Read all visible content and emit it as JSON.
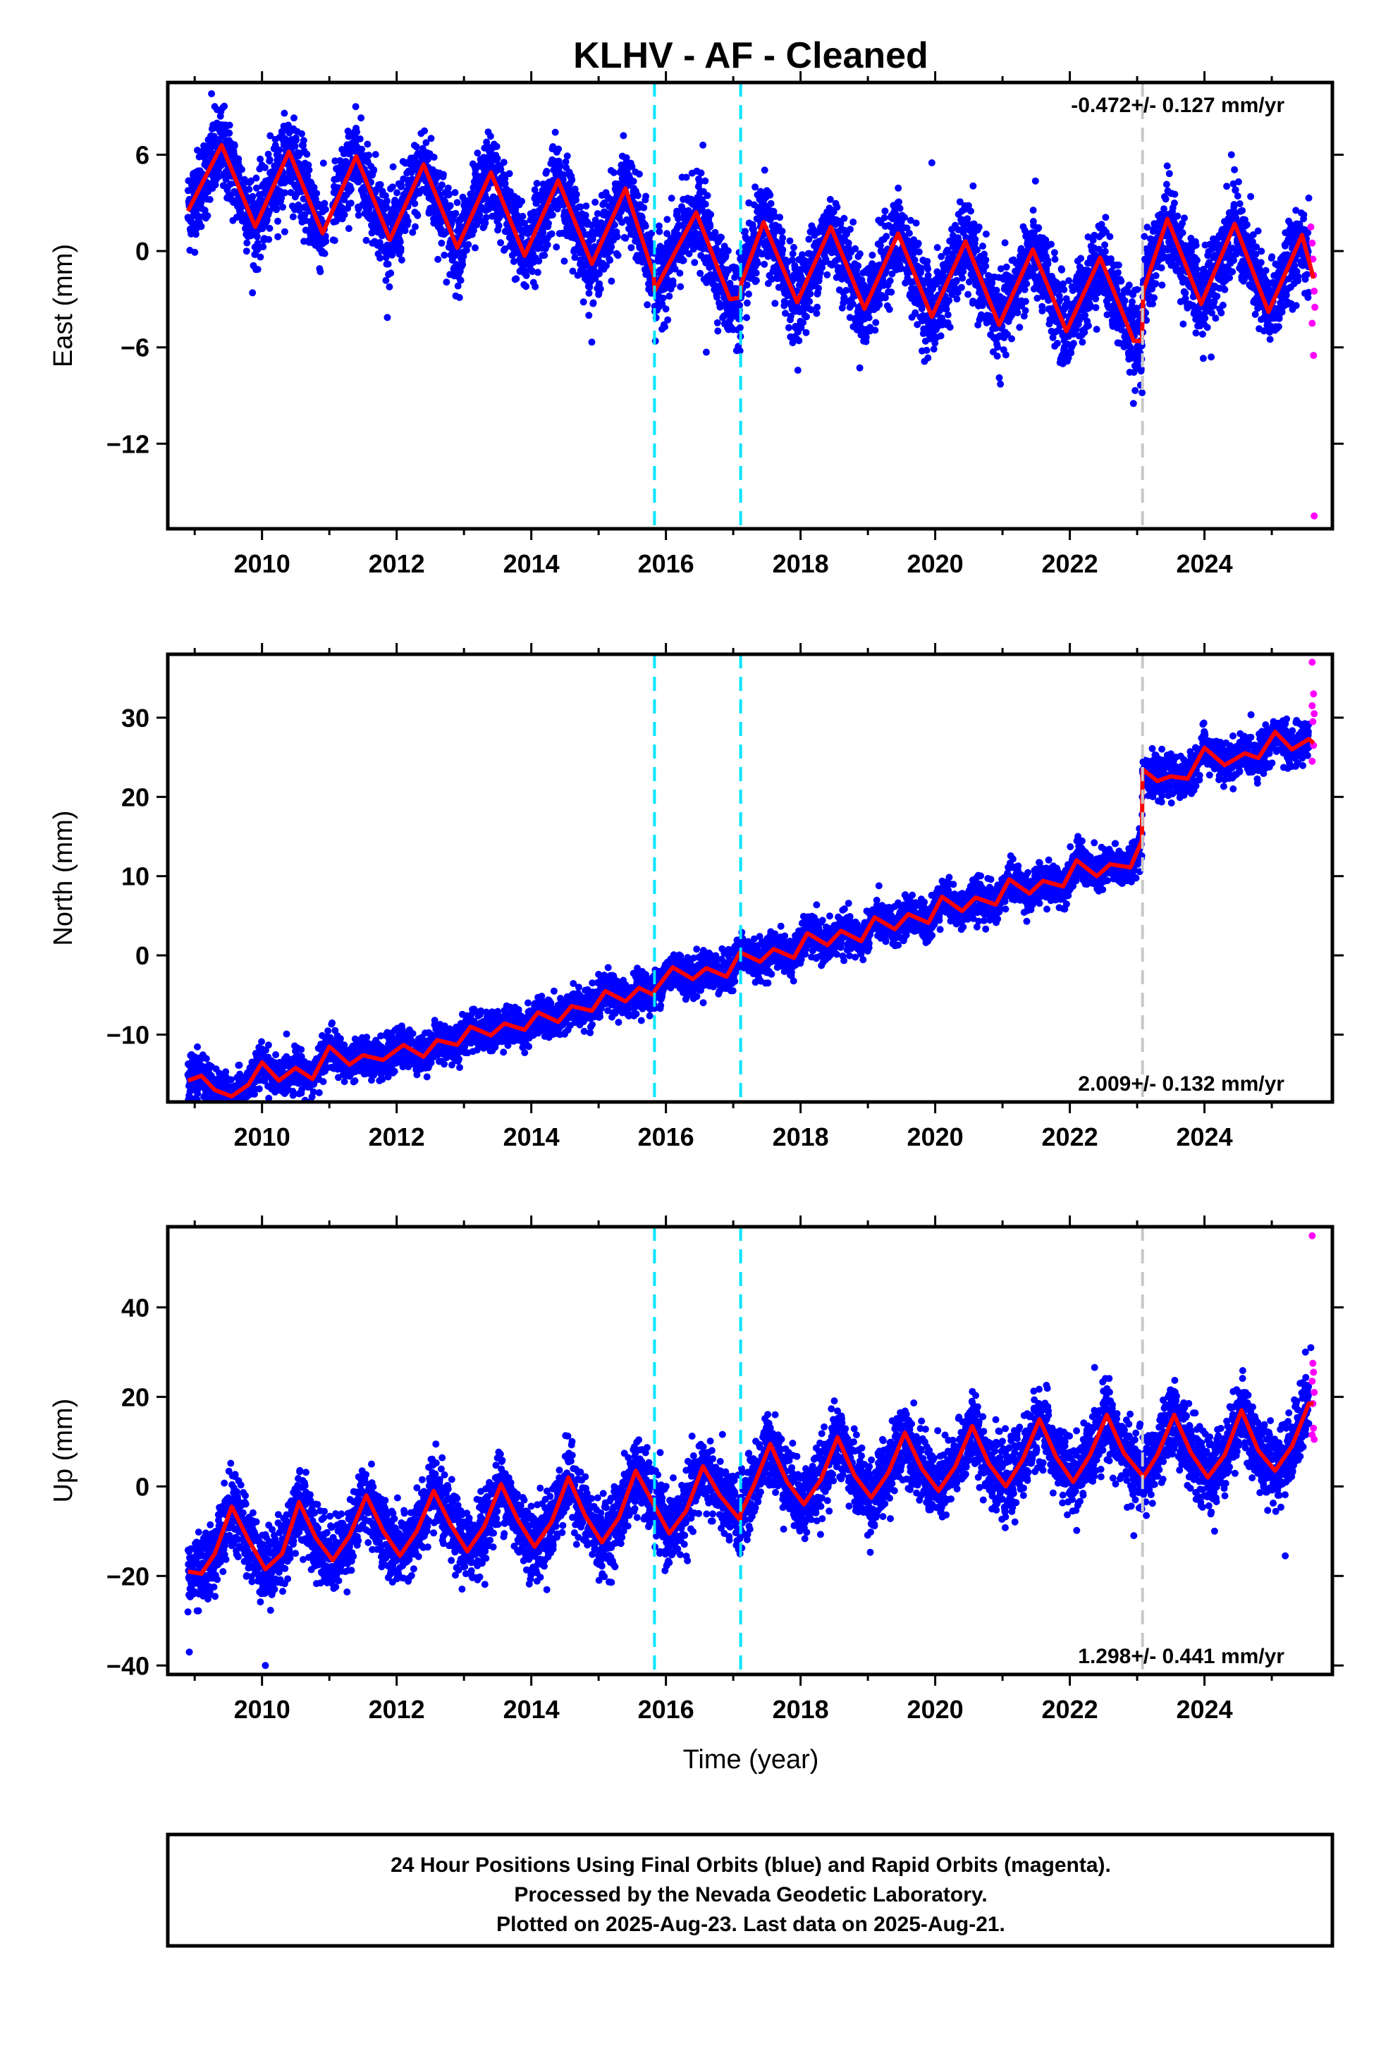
{
  "title": "KLHV  - AF - Cleaned",
  "colors": {
    "final_orbits": "#0000ff",
    "rapid_orbits": "#ff00ff",
    "model_fit": "#ff0000",
    "equipment_change": "#00e5ff",
    "earthquake": "#c8c8c8"
  },
  "xlabel": "Time (year)",
  "footer": {
    "line1": "24 Hour Positions Using Final Orbits (blue) and Rapid Orbits (magenta).",
    "line2": "Processed by the Nevada Geodetic Laboratory.",
    "line3": "Plotted on 2025-Aug-23. Last data on 2025-Aug-21."
  },
  "chart_data": [
    {
      "type": "scatter",
      "component": "East",
      "ylabel": "East (mm)",
      "xlim": [
        2008.6,
        2025.9
      ],
      "ylim": [
        -17.3,
        10.5
      ],
      "x_ticks": [
        2010,
        2012,
        2014,
        2016,
        2018,
        2020,
        2022,
        2024
      ],
      "x_tick_labels": [
        "2010",
        "2012",
        "2014",
        "2016",
        "2018",
        "2020",
        "2022",
        "2024"
      ],
      "y_ticks": [
        6,
        0,
        -6,
        -12
      ],
      "y_tick_labels": [
        "6",
        "0",
        "−6",
        "−12"
      ],
      "rate_label": "-0.472+/- 0.127 mm/yr",
      "rate_position": "top-right",
      "model_fit": {
        "name": "model fit",
        "knots": [
          [
            2008.9,
            2.5
          ],
          [
            2009.4,
            6.6
          ],
          [
            2009.9,
            1.5
          ],
          [
            2010.4,
            6.2
          ],
          [
            2010.9,
            1.1
          ],
          [
            2011.4,
            5.9
          ],
          [
            2011.9,
            0.7
          ],
          [
            2012.4,
            5.4
          ],
          [
            2012.9,
            0.2
          ],
          [
            2013.4,
            4.9
          ],
          [
            2013.9,
            -0.3
          ],
          [
            2014.4,
            4.4
          ],
          [
            2014.9,
            -0.8
          ],
          [
            2015.4,
            3.9
          ],
          [
            2015.82,
            -1.5
          ],
          [
            2015.83,
            -2.5
          ],
          [
            2016.45,
            2.4
          ],
          [
            2016.95,
            -3.0
          ],
          [
            2017.1,
            -2.9
          ],
          [
            2017.12,
            -2.0
          ],
          [
            2017.45,
            1.8
          ],
          [
            2017.95,
            -3.2
          ],
          [
            2018.45,
            1.5
          ],
          [
            2018.95,
            -3.6
          ],
          [
            2019.45,
            1.1
          ],
          [
            2019.95,
            -4.1
          ],
          [
            2020.45,
            0.6
          ],
          [
            2020.95,
            -4.6
          ],
          [
            2021.45,
            0.1
          ],
          [
            2021.95,
            -5.0
          ],
          [
            2022.45,
            -0.4
          ],
          [
            2022.95,
            -5.6
          ],
          [
            2023.07,
            -5.6
          ],
          [
            2023.09,
            -2.5
          ],
          [
            2023.45,
            2.0
          ],
          [
            2023.95,
            -3.3
          ],
          [
            2024.45,
            1.7
          ],
          [
            2024.95,
            -3.8
          ],
          [
            2025.45,
            1.0
          ],
          [
            2025.62,
            -1.7
          ]
        ]
      },
      "final_orbits": {
        "name": "Final Orbits",
        "x_range": [
          2008.9,
          2025.55
        ],
        "follows_model_fit": true,
        "scatter_mm": 1.3,
        "outliers": [
          [
            2009.25,
            9.8
          ],
          [
            2016.55,
            6.6
          ],
          [
            2019.95,
            5.5
          ],
          [
            2024.4,
            6.0
          ],
          [
            2016.6,
            -6.3
          ],
          [
            2017.05,
            -6.2
          ],
          [
            2024.1,
            -6.6
          ]
        ]
      },
      "rapid_orbits": {
        "name": "Rapid Orbits",
        "points": [
          [
            2025.58,
            1.5
          ],
          [
            2025.6,
            0.5
          ],
          [
            2025.61,
            -0.5
          ],
          [
            2025.62,
            -1.5
          ],
          [
            2025.63,
            -2.5
          ],
          [
            2025.64,
            -3.5
          ],
          [
            2025.6,
            -4.5
          ],
          [
            2025.62,
            -6.5
          ],
          [
            2025.63,
            -16.5
          ]
        ]
      },
      "equipment_changes": [
        2015.83,
        2017.11
      ],
      "earthquakes": [
        2023.08
      ]
    },
    {
      "type": "scatter",
      "component": "North",
      "ylabel": "North (mm)",
      "xlim": [
        2008.6,
        2025.9
      ],
      "ylim": [
        -18.5,
        38.0
      ],
      "x_ticks": [
        2010,
        2012,
        2014,
        2016,
        2018,
        2020,
        2022,
        2024
      ],
      "x_tick_labels": [
        "2010",
        "2012",
        "2014",
        "2016",
        "2018",
        "2020",
        "2022",
        "2024"
      ],
      "y_ticks": [
        30,
        20,
        10,
        0,
        -10
      ],
      "y_tick_labels": [
        "30",
        "20",
        "10",
        "0",
        "−10"
      ],
      "rate_label": "2.009+/- 0.132 mm/yr",
      "rate_position": "bottom-right",
      "model_fit": {
        "name": "model fit",
        "knots": [
          [
            2008.9,
            -15.8
          ],
          [
            2009.1,
            -15.2
          ],
          [
            2009.3,
            -17.0
          ],
          [
            2009.55,
            -17.8
          ],
          [
            2009.8,
            -16.3
          ],
          [
            2010.0,
            -13.5
          ],
          [
            2010.25,
            -15.8
          ],
          [
            2010.5,
            -14.2
          ],
          [
            2010.75,
            -15.6
          ],
          [
            2011.0,
            -11.5
          ],
          [
            2011.3,
            -13.8
          ],
          [
            2011.5,
            -12.6
          ],
          [
            2011.8,
            -13.2
          ],
          [
            2012.1,
            -11.3
          ],
          [
            2012.4,
            -12.8
          ],
          [
            2012.6,
            -10.7
          ],
          [
            2012.9,
            -11.3
          ],
          [
            2013.1,
            -9.0
          ],
          [
            2013.4,
            -10.1
          ],
          [
            2013.6,
            -8.6
          ],
          [
            2013.9,
            -9.4
          ],
          [
            2014.1,
            -7.2
          ],
          [
            2014.4,
            -8.4
          ],
          [
            2014.6,
            -6.4
          ],
          [
            2014.9,
            -7.0
          ],
          [
            2015.1,
            -4.5
          ],
          [
            2015.4,
            -5.8
          ],
          [
            2015.6,
            -4.1
          ],
          [
            2015.82,
            -5.0
          ],
          [
            2015.83,
            -4.5
          ],
          [
            2016.1,
            -1.5
          ],
          [
            2016.4,
            -3.0
          ],
          [
            2016.6,
            -1.6
          ],
          [
            2016.9,
            -2.7
          ],
          [
            2017.1,
            0.4
          ],
          [
            2017.4,
            -0.8
          ],
          [
            2017.6,
            0.8
          ],
          [
            2017.9,
            -0.3
          ],
          [
            2018.1,
            2.8
          ],
          [
            2018.4,
            1.3
          ],
          [
            2018.6,
            3.1
          ],
          [
            2018.9,
            1.8
          ],
          [
            2019.1,
            4.8
          ],
          [
            2019.4,
            3.3
          ],
          [
            2019.6,
            5.2
          ],
          [
            2019.9,
            4.1
          ],
          [
            2020.1,
            7.4
          ],
          [
            2020.4,
            5.6
          ],
          [
            2020.6,
            7.3
          ],
          [
            2020.9,
            6.4
          ],
          [
            2021.1,
            9.6
          ],
          [
            2021.4,
            7.8
          ],
          [
            2021.6,
            9.4
          ],
          [
            2021.9,
            8.7
          ],
          [
            2022.1,
            12.0
          ],
          [
            2022.4,
            10.0
          ],
          [
            2022.6,
            11.5
          ],
          [
            2022.9,
            11.1
          ],
          [
            2023.07,
            14.5
          ],
          [
            2023.08,
            23.5
          ],
          [
            2023.3,
            22.0
          ],
          [
            2023.5,
            22.6
          ],
          [
            2023.75,
            22.3
          ],
          [
            2024.0,
            26.2
          ],
          [
            2024.3,
            24.0
          ],
          [
            2024.6,
            25.5
          ],
          [
            2024.8,
            24.9
          ],
          [
            2025.05,
            28.2
          ],
          [
            2025.3,
            26.0
          ],
          [
            2025.55,
            27.3
          ],
          [
            2025.62,
            26.8
          ]
        ]
      },
      "final_orbits": {
        "name": "Final Orbits",
        "x_range": [
          2008.9,
          2025.55
        ],
        "follows_model_fit": true,
        "scatter_mm": 1.2,
        "outliers": []
      },
      "rapid_orbits": {
        "name": "Rapid Orbits",
        "points": [
          [
            2025.6,
            37.0
          ],
          [
            2025.62,
            33.0
          ],
          [
            2025.6,
            31.5
          ],
          [
            2025.63,
            30.5
          ],
          [
            2025.61,
            29.5
          ],
          [
            2025.62,
            26.5
          ],
          [
            2025.6,
            24.5
          ]
        ]
      },
      "equipment_changes": [
        2015.83,
        2017.11
      ],
      "earthquakes": [
        2023.08
      ]
    },
    {
      "type": "scatter",
      "component": "Up",
      "ylabel": "Up (mm)",
      "xlim": [
        2008.6,
        2025.9
      ],
      "ylim": [
        -42.0,
        58.0
      ],
      "x_ticks": [
        2010,
        2012,
        2014,
        2016,
        2018,
        2020,
        2022,
        2024
      ],
      "x_tick_labels": [
        "2010",
        "2012",
        "2014",
        "2016",
        "2018",
        "2020",
        "2022",
        "2024"
      ],
      "y_ticks": [
        40,
        20,
        0,
        -20,
        -40
      ],
      "y_tick_labels": [
        "40",
        "20",
        "0",
        "−20",
        "−40"
      ],
      "rate_label": "1.298+/- 0.441 mm/yr",
      "rate_position": "bottom-right",
      "model_fit": {
        "name": "model fit",
        "knots": [
          [
            2008.9,
            -19.0
          ],
          [
            2009.1,
            -19.5
          ],
          [
            2009.3,
            -15.0
          ],
          [
            2009.55,
            -4.5
          ],
          [
            2009.8,
            -12.0
          ],
          [
            2010.05,
            -18.5
          ],
          [
            2010.3,
            -15.0
          ],
          [
            2010.55,
            -3.5
          ],
          [
            2010.8,
            -11.5
          ],
          [
            2011.05,
            -16.5
          ],
          [
            2011.3,
            -11.0
          ],
          [
            2011.55,
            -2.0
          ],
          [
            2011.8,
            -10.0
          ],
          [
            2012.05,
            -15.5
          ],
          [
            2012.3,
            -10.0
          ],
          [
            2012.55,
            -1.0
          ],
          [
            2012.8,
            -8.5
          ],
          [
            2013.05,
            -14.5
          ],
          [
            2013.3,
            -9.0
          ],
          [
            2013.55,
            0.5
          ],
          [
            2013.8,
            -7.5
          ],
          [
            2014.05,
            -13.5
          ],
          [
            2014.3,
            -8.0
          ],
          [
            2014.55,
            2.0
          ],
          [
            2014.8,
            -6.5
          ],
          [
            2015.05,
            -12.5
          ],
          [
            2015.3,
            -7.0
          ],
          [
            2015.55,
            3.5
          ],
          [
            2015.8,
            -3.5
          ],
          [
            2016.05,
            -10.5
          ],
          [
            2016.3,
            -5.5
          ],
          [
            2016.55,
            4.5
          ],
          [
            2016.8,
            -2.0
          ],
          [
            2017.1,
            -7.5
          ],
          [
            2017.11,
            -6.0
          ],
          [
            2017.3,
            0.0
          ],
          [
            2017.55,
            9.5
          ],
          [
            2017.8,
            1.0
          ],
          [
            2018.05,
            -4.0
          ],
          [
            2018.3,
            1.5
          ],
          [
            2018.55,
            11.0
          ],
          [
            2018.8,
            2.5
          ],
          [
            2019.05,
            -2.5
          ],
          [
            2019.3,
            3.0
          ],
          [
            2019.55,
            12.0
          ],
          [
            2019.8,
            4.0
          ],
          [
            2020.05,
            -1.0
          ],
          [
            2020.3,
            4.5
          ],
          [
            2020.55,
            13.5
          ],
          [
            2020.8,
            5.0
          ],
          [
            2021.05,
            0.0
          ],
          [
            2021.3,
            6.0
          ],
          [
            2021.55,
            15.0
          ],
          [
            2021.8,
            6.5
          ],
          [
            2022.05,
            1.0
          ],
          [
            2022.3,
            7.0
          ],
          [
            2022.55,
            16.0
          ],
          [
            2022.8,
            7.5
          ],
          [
            2023.07,
            2.5
          ],
          [
            2023.09,
            2.0
          ],
          [
            2023.3,
            7.0
          ],
          [
            2023.55,
            16.0
          ],
          [
            2023.8,
            7.5
          ],
          [
            2024.05,
            2.0
          ],
          [
            2024.3,
            7.0
          ],
          [
            2024.55,
            17.0
          ],
          [
            2024.8,
            8.0
          ],
          [
            2025.05,
            3.5
          ],
          [
            2025.3,
            9.0
          ],
          [
            2025.55,
            18.5
          ],
          [
            2025.62,
            18.5
          ]
        ]
      },
      "final_orbits": {
        "name": "Final Orbits",
        "x_range": [
          2008.9,
          2025.55
        ],
        "follows_model_fit": true,
        "scatter_mm": 4.0,
        "outliers": [
          [
            2008.92,
            -37.0
          ],
          [
            2010.05,
            -40.0
          ],
          [
            2022.95,
            -11.0
          ],
          [
            2024.15,
            -10.0
          ],
          [
            2025.2,
            -15.5
          ],
          [
            2025.58,
            31.0
          ],
          [
            2025.5,
            30.0
          ]
        ]
      },
      "rapid_orbits": {
        "name": "Rapid Orbits",
        "points": [
          [
            2025.6,
            56.0
          ],
          [
            2025.61,
            27.5
          ],
          [
            2025.62,
            25.5
          ],
          [
            2025.6,
            23.5
          ],
          [
            2025.63,
            21.0
          ],
          [
            2025.61,
            18.5
          ],
          [
            2025.62,
            13.0
          ],
          [
            2025.6,
            11.5
          ],
          [
            2025.63,
            10.5
          ]
        ]
      },
      "equipment_changes": [
        2015.83,
        2017.11
      ],
      "earthquakes": [
        2023.08
      ]
    }
  ]
}
